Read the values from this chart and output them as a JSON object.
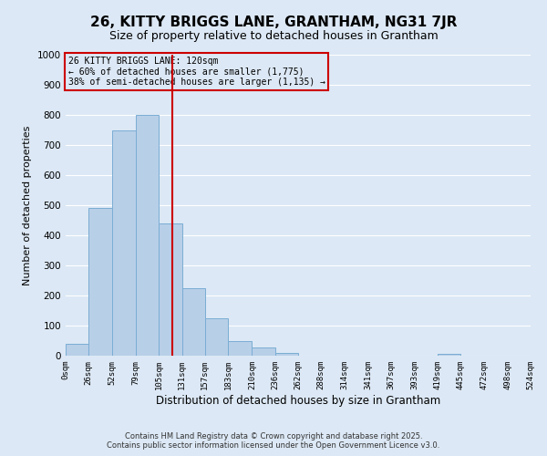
{
  "title": "26, KITTY BRIGGS LANE, GRANTHAM, NG31 7JR",
  "subtitle": "Size of property relative to detached houses in Grantham",
  "xlabel": "Distribution of detached houses by size in Grantham",
  "ylabel": "Number of detached properties",
  "bin_edges": [
    0,
    26,
    52,
    79,
    105,
    131,
    157,
    183,
    210,
    236,
    262,
    288,
    314,
    341,
    367,
    393,
    419,
    445,
    472,
    498,
    524
  ],
  "bar_heights": [
    40,
    490,
    750,
    800,
    440,
    225,
    125,
    50,
    27,
    10,
    0,
    0,
    0,
    0,
    0,
    0,
    5,
    0,
    0,
    0
  ],
  "bar_color": "#b8cfe8",
  "bar_edge_color": "#7aadd4",
  "bg_color": "#dce8f5",
  "grid_color": "#ffffff",
  "vline_x": 120,
  "vline_color": "#cc0000",
  "annotation_box_text": "26 KITTY BRIGGS LANE: 120sqm\n← 60% of detached houses are smaller (1,775)\n38% of semi-detached houses are larger (1,135) →",
  "annotation_box_color": "#cc0000",
  "ylim": [
    0,
    1000
  ],
  "tick_labels": [
    "0sqm",
    "26sqm",
    "52sqm",
    "79sqm",
    "105sqm",
    "131sqm",
    "157sqm",
    "183sqm",
    "210sqm",
    "236sqm",
    "262sqm",
    "288sqm",
    "314sqm",
    "341sqm",
    "367sqm",
    "393sqm",
    "419sqm",
    "445sqm",
    "472sqm",
    "498sqm",
    "524sqm"
  ],
  "footnote1": "Contains HM Land Registry data © Crown copyright and database right 2025.",
  "footnote2": "Contains public sector information licensed under the Open Government Licence v3.0.",
  "title_fontsize": 11,
  "subtitle_fontsize": 9
}
